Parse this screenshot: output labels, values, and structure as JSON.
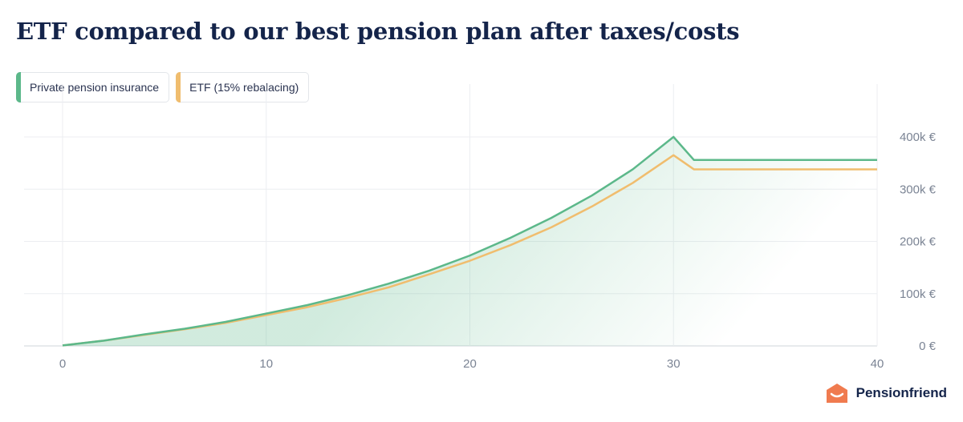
{
  "title": "ETF compared to our best pension plan after taxes/costs",
  "brand": {
    "name": "Pensionfriend",
    "logo_icon": "house-logo-icon",
    "color": "#f07b4f"
  },
  "chart_data": {
    "type": "area",
    "title": "ETF compared to our best pension plan after taxes/costs",
    "xlabel": "",
    "ylabel": "",
    "xlim": [
      0,
      40
    ],
    "ylim": [
      0,
      400000
    ],
    "x_ticks": [
      0,
      10,
      20,
      30,
      40
    ],
    "y_ticks": [
      0,
      100000,
      200000,
      300000,
      400000
    ],
    "y_tick_labels": [
      "0 €",
      "100k €",
      "200k €",
      "300k €",
      "400k €"
    ],
    "grid": true,
    "legend_position": "top-left",
    "series": [
      {
        "name": "Private pension insurance",
        "color": "#5cb88a",
        "filled": true,
        "x": [
          0,
          2,
          4,
          6,
          8,
          10,
          12,
          14,
          16,
          18,
          20,
          22,
          24,
          26,
          28,
          30,
          31,
          32,
          34,
          36,
          38,
          40
        ],
        "y": [
          1000,
          10000,
          22000,
          33000,
          46000,
          62000,
          78000,
          97000,
          119000,
          144000,
          173000,
          207000,
          245000,
          288000,
          338000,
          400000,
          356000,
          356000,
          356000,
          356000,
          356000,
          356000
        ]
      },
      {
        "name": "ETF (15% rebalacing)",
        "color": "#f0bd6e",
        "filled": false,
        "x": [
          0,
          2,
          4,
          6,
          8,
          10,
          12,
          14,
          16,
          18,
          20,
          22,
          24,
          26,
          28,
          30,
          31,
          32,
          34,
          36,
          38,
          40
        ],
        "y": [
          1000,
          10000,
          21000,
          32000,
          44000,
          59000,
          74000,
          92000,
          112000,
          137000,
          163000,
          193000,
          227000,
          267000,
          312000,
          365000,
          338000,
          338000,
          338000,
          338000,
          338000,
          338000
        ]
      }
    ]
  }
}
